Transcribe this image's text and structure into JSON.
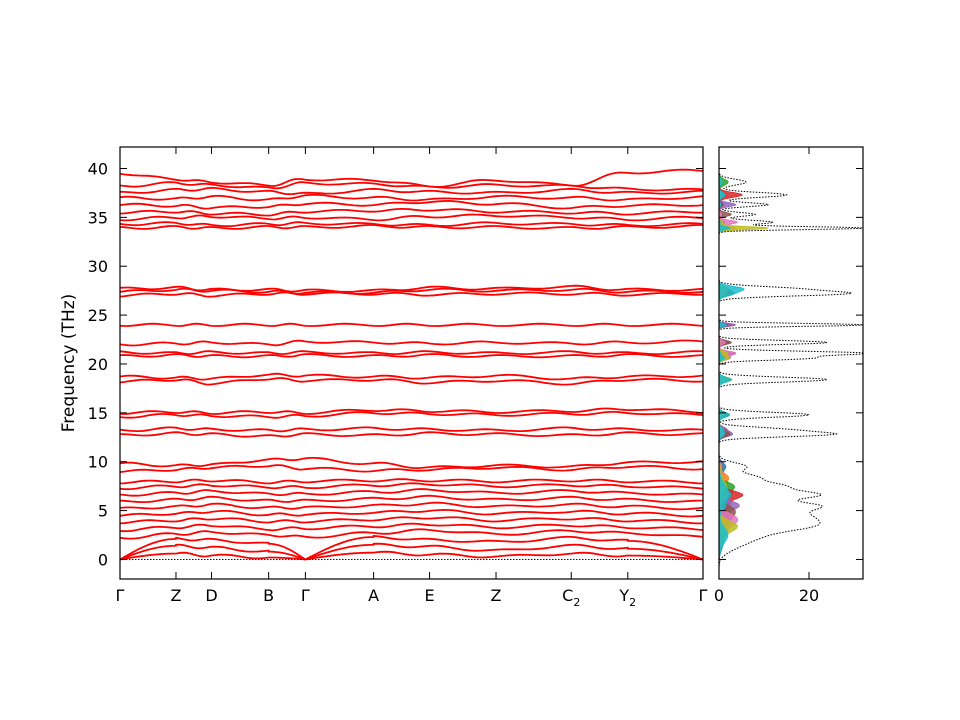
{
  "chart_data": [
    {
      "type": "line",
      "name": "band-structure",
      "ylabel": "Frequency (THz)",
      "ylim": [
        -2,
        42.2
      ],
      "yticks": [
        0,
        5,
        10,
        15,
        20,
        25,
        30,
        35,
        40
      ],
      "ytick_labels": [
        "0",
        "5",
        "10",
        "15",
        "20",
        "25",
        "30",
        "35",
        "40"
      ],
      "kpath_labels": [
        {
          "main": "Γ",
          "sub": "",
          "pos": 0.0
        },
        {
          "main": "Z",
          "sub": "",
          "pos": 0.096
        },
        {
          "main": "D",
          "sub": "",
          "pos": 0.157
        },
        {
          "main": "B",
          "sub": "",
          "pos": 0.255
        },
        {
          "main": "Γ",
          "sub": "",
          "pos": 0.318
        },
        {
          "main": "A",
          "sub": "",
          "pos": 0.435
        },
        {
          "main": "E",
          "sub": "",
          "pos": 0.531
        },
        {
          "main": "Z",
          "sub": "",
          "pos": 0.645
        },
        {
          "main": "C",
          "sub": "2",
          "pos": 0.774
        },
        {
          "main": "Y",
          "sub": "2",
          "pos": 0.871
        },
        {
          "main": "Γ",
          "sub": "",
          "pos": 1.0
        }
      ],
      "line_color": "#ff0000",
      "zero_line_color": "#0000cc",
      "bands": [
        [
          0.0,
          0.6,
          0.4,
          0.2,
          0.0,
          0.7,
          0.5,
          0.3,
          0.6,
          0.4,
          0.0
        ],
        [
          0.0,
          1.4,
          1.2,
          0.8,
          0.0,
          1.5,
          1.3,
          0.9,
          1.4,
          1.1,
          0.0
        ],
        [
          0.0,
          2.1,
          2.0,
          1.6,
          0.0,
          2.3,
          2.0,
          1.8,
          2.2,
          1.9,
          0.0
        ],
        [
          2.2,
          2.6,
          2.8,
          2.5,
          2.3,
          2.7,
          3.0,
          2.6,
          2.9,
          2.7,
          2.3
        ],
        [
          3.0,
          3.3,
          3.5,
          3.1,
          3.2,
          3.4,
          3.6,
          3.3,
          3.5,
          3.3,
          3.1
        ],
        [
          3.8,
          4.0,
          4.2,
          3.9,
          3.9,
          4.1,
          4.3,
          4.0,
          4.2,
          4.0,
          3.8
        ],
        [
          4.5,
          4.7,
          4.9,
          4.6,
          4.6,
          4.8,
          5.0,
          4.7,
          4.9,
          4.7,
          4.5
        ],
        [
          5.2,
          5.4,
          5.6,
          5.3,
          5.3,
          5.5,
          5.7,
          5.4,
          5.6,
          5.4,
          5.2
        ],
        [
          5.9,
          6.1,
          6.3,
          6.0,
          6.0,
          6.2,
          6.4,
          6.1,
          6.3,
          6.1,
          5.9
        ],
        [
          6.6,
          6.8,
          7.0,
          6.7,
          6.7,
          6.9,
          7.1,
          6.8,
          7.0,
          6.8,
          6.6
        ],
        [
          7.3,
          7.5,
          7.6,
          7.4,
          7.4,
          7.6,
          7.7,
          7.5,
          7.6,
          7.5,
          7.3
        ],
        [
          7.9,
          8.0,
          8.1,
          7.9,
          8.0,
          8.1,
          8.1,
          8.0,
          8.1,
          8.0,
          7.9
        ],
        [
          9.0,
          9.2,
          9.4,
          9.6,
          9.3,
          9.1,
          9.2,
          9.4,
          9.2,
          9.5,
          9.3
        ],
        [
          9.8,
          9.6,
          9.7,
          10.2,
          10.3,
          9.8,
          9.4,
          9.6,
          9.5,
          9.9,
          10.0
        ],
        [
          12.7,
          12.9,
          12.8,
          12.6,
          12.8,
          12.7,
          12.9,
          12.8,
          12.7,
          12.9,
          12.8
        ],
        [
          13.2,
          13.4,
          13.3,
          13.2,
          13.3,
          13.4,
          13.3,
          13.2,
          13.4,
          13.3,
          13.2
        ],
        [
          14.6,
          14.8,
          14.7,
          14.6,
          14.7,
          15.0,
          14.9,
          14.8,
          14.9,
          15.0,
          14.8
        ],
        [
          15.0,
          15.1,
          15.0,
          15.1,
          15.0,
          15.3,
          15.2,
          15.1,
          15.2,
          15.4,
          15.1
        ],
        [
          18.2,
          18.4,
          18.0,
          18.5,
          18.3,
          18.4,
          18.1,
          18.3,
          18.0,
          18.4,
          18.3
        ],
        [
          18.7,
          18.6,
          18.5,
          18.9,
          18.8,
          18.7,
          18.6,
          18.8,
          18.5,
          18.7,
          18.8
        ],
        [
          20.8,
          20.9,
          20.8,
          20.8,
          20.9,
          20.8,
          20.9,
          20.8,
          20.8,
          20.9,
          20.8
        ],
        [
          21.2,
          21.1,
          21.2,
          21.1,
          21.2,
          21.1,
          21.2,
          21.1,
          21.2,
          21.1,
          21.2
        ],
        [
          22.0,
          22.1,
          22.2,
          22.0,
          22.3,
          22.2,
          22.1,
          22.2,
          22.1,
          22.2,
          22.3
        ],
        [
          24.0,
          24.0,
          24.0,
          24.0,
          24.0,
          24.0,
          24.0,
          24.0,
          24.0,
          24.0,
          24.0
        ],
        [
          27.0,
          27.2,
          27.0,
          27.2,
          27.2,
          27.2,
          27.1,
          27.2,
          27.2,
          27.1,
          27.2
        ],
        [
          27.4,
          27.6,
          27.5,
          27.4,
          27.3,
          27.3,
          27.6,
          27.5,
          27.6,
          27.4,
          27.4
        ],
        [
          27.7,
          27.8,
          27.6,
          27.6,
          27.5,
          27.5,
          27.8,
          27.7,
          27.9,
          27.6,
          27.6
        ],
        [
          33.9,
          34.0,
          33.9,
          34.0,
          34.0,
          34.1,
          34.0,
          34.0,
          33.9,
          34.0,
          34.1
        ],
        [
          34.3,
          34.4,
          34.2,
          34.3,
          34.4,
          34.3,
          34.2,
          34.4,
          34.3,
          34.2,
          34.3
        ],
        [
          34.8,
          35.0,
          35.1,
          34.9,
          35.0,
          34.8,
          35.1,
          35.2,
          35.0,
          34.8,
          35.0
        ],
        [
          35.5,
          35.6,
          35.4,
          35.3,
          35.6,
          35.7,
          35.8,
          35.6,
          35.5,
          35.4,
          35.6
        ],
        [
          36.3,
          36.2,
          36.0,
          36.1,
          36.4,
          36.3,
          36.6,
          36.4,
          36.0,
          36.2,
          36.3
        ],
        [
          37.0,
          36.9,
          37.1,
          36.8,
          37.2,
          37.0,
          36.8,
          37.1,
          37.0,
          36.8,
          37.1
        ],
        [
          37.5,
          37.8,
          37.9,
          37.6,
          37.4,
          37.8,
          37.6,
          37.5,
          37.8,
          37.5,
          37.6
        ],
        [
          38.2,
          38.5,
          38.3,
          38.0,
          38.5,
          38.4,
          38.1,
          38.3,
          38.2,
          37.9,
          37.8
        ],
        [
          39.5,
          38.9,
          38.6,
          38.3,
          38.9,
          38.8,
          38.2,
          38.8,
          38.3,
          39.6,
          39.8
        ]
      ]
    },
    {
      "type": "area",
      "name": "dos",
      "xlim": [
        0,
        32
      ],
      "xticks": [
        0,
        20
      ],
      "xtick_labels": [
        "0",
        "20"
      ],
      "ylim": [
        -2,
        42.2
      ],
      "total_color": "#000000",
      "peaks": [
        {
          "f": 1.5,
          "total": 4,
          "w": 0.7
        },
        {
          "f": 2.5,
          "total": 7,
          "w": 0.6
        },
        {
          "f": 3.4,
          "total": 15,
          "w": 0.5
        },
        {
          "f": 4.2,
          "total": 14,
          "w": 0.5
        },
        {
          "f": 5.0,
          "total": 12,
          "w": 0.5
        },
        {
          "f": 5.6,
          "total": 15,
          "w": 0.4
        },
        {
          "f": 6.6,
          "total": 21,
          "w": 0.4
        },
        {
          "f": 7.5,
          "total": 13,
          "w": 0.4
        },
        {
          "f": 8.4,
          "total": 8,
          "w": 0.4
        },
        {
          "f": 9.5,
          "total": 6,
          "w": 0.4
        },
        {
          "f": 12.8,
          "total": 24,
          "w": 0.25
        },
        {
          "f": 13.3,
          "total": 13,
          "w": 0.25
        },
        {
          "f": 14.8,
          "total": 20,
          "w": 0.25
        },
        {
          "f": 18.4,
          "total": 24,
          "w": 0.25
        },
        {
          "f": 20.6,
          "total": 20,
          "w": 0.2
        },
        {
          "f": 21.1,
          "total": 32,
          "w": 0.2
        },
        {
          "f": 22.2,
          "total": 24,
          "w": 0.2
        },
        {
          "f": 24.0,
          "total": 32,
          "w": 0.15
        },
        {
          "f": 27.2,
          "total": 27,
          "w": 0.25
        },
        {
          "f": 27.7,
          "total": 15,
          "w": 0.25
        },
        {
          "f": 33.9,
          "total": 32,
          "w": 0.15
        },
        {
          "f": 34.5,
          "total": 12,
          "w": 0.2
        },
        {
          "f": 35.3,
          "total": 8,
          "w": 0.2
        },
        {
          "f": 36.3,
          "total": 11,
          "w": 0.2
        },
        {
          "f": 37.3,
          "total": 15,
          "w": 0.25
        },
        {
          "f": 38.6,
          "total": 6,
          "w": 0.3
        }
      ],
      "partial_colors": [
        "#1f77b4",
        "#ff7f0e",
        "#2ca02c",
        "#d62728",
        "#9467bd",
        "#8c564b",
        "#e377c2",
        "#bcbd22",
        "#17becf"
      ]
    }
  ]
}
